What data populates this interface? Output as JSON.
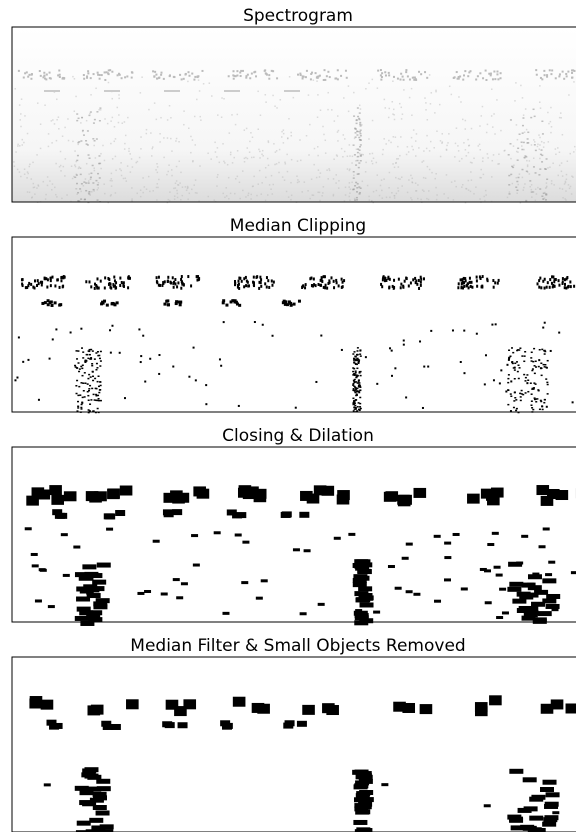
{
  "panels": [
    {
      "title": "Spectrogram"
    },
    {
      "title": "Median Clipping"
    },
    {
      "title": "Closing & Dilation"
    },
    {
      "title": "Median Filter & Small Objects Removed"
    }
  ]
}
